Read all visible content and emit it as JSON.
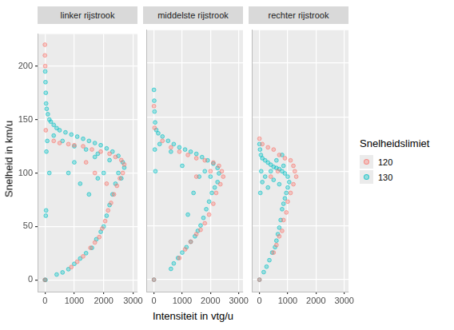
{
  "chart_data": {
    "type": "scatter",
    "x_label": "Intensiteit in vtg/u",
    "y_label": "Snelheid in km/u",
    "legend": "right",
    "legend_title": "Snelheidslimiet",
    "xlim": [
      -250,
      3150
    ],
    "xticks": [
      0,
      1000,
      2000,
      3000
    ],
    "ylim": [
      -11,
      230
    ],
    "yticks": [
      0,
      50,
      100,
      150,
      200
    ],
    "grid": true,
    "marker": "circle",
    "panels": [
      {
        "title": "linker rijstrook",
        "series": [
          {
            "name": "120",
            "color": "#F8766D",
            "x": [
              0,
              0,
              10,
              30,
              300,
              500,
              800,
              1000,
              1300,
              1600,
              1900,
              2200,
              2400,
              2600,
              2700,
              2650,
              2550,
              2450,
              2350,
              2250,
              2150,
              2050,
              1950,
              1850,
              1700,
              1550,
              1300,
              1100,
              900,
              2100,
              1700,
              1400,
              0
            ],
            "values": [
              220,
              210,
              200,
              140,
              130,
              128,
              127,
              126,
              125,
              122,
              120,
              118,
              115,
              112,
              108,
              100,
              95,
              88,
              80,
              72,
              65,
              55,
              48,
              40,
              35,
              30,
              22,
              17,
              12,
              90,
              100,
              110,
              0
            ]
          },
          {
            "name": "130",
            "color": "#00BFC4",
            "x": [
              0,
              20,
              10,
              20,
              30,
              40,
              60,
              100,
              150,
              200,
              300,
              400,
              500,
              700,
              900,
              1100,
              1300,
              1500,
              1700,
              1900,
              2100,
              2300,
              2500,
              2650,
              2700,
              50,
              80,
              300,
              600,
              1000,
              1400,
              1800,
              2200,
              2500,
              2400,
              2300,
              2200,
              2100,
              2000,
              1900,
              1750,
              1600,
              1400,
              1200,
              1000,
              800,
              600,
              400,
              2600,
              1700,
              40,
              30,
              150,
              800,
              1000,
              1200,
              1500,
              1800,
              2000
            ],
            "values": [
              0,
              0,
              195,
              185,
              175,
              165,
              160,
              155,
              150,
              148,
              145,
              142,
              140,
              138,
              136,
              134,
              132,
              130,
              128,
              126,
              123,
              120,
              116,
              110,
              105,
              120,
              130,
              135,
              130,
              125,
              122,
              118,
              112,
              100,
              90,
              80,
              70,
              60,
              50,
              45,
              38,
              30,
              25,
              20,
              15,
              10,
              7,
              5,
              95,
              115,
              65,
              60,
              100,
              100,
              110,
              90,
              80,
              95,
              100
            ]
          }
        ]
      },
      {
        "title": "middelste rijstrook",
        "series": [
          {
            "name": "120",
            "color": "#F8766D",
            "x": [
              0,
              20,
              300,
              600,
              900,
              1200,
              1500,
              1800,
              2100,
              2300,
              2400,
              2450,
              2350,
              2200,
              2100,
              1950,
              1800,
              1650,
              1500,
              1300,
              1100,
              900,
              0,
              1500,
              2000
            ],
            "values": [
              160,
              140,
              128,
              122,
              118,
              115,
              112,
              110,
              108,
              105,
              100,
              95,
              88,
              80,
              70,
              60,
              52,
              46,
              42,
              35,
              28,
              20,
              0,
              95,
              100
            ]
          },
          {
            "name": "130",
            "color": "#00BFC4",
            "x": [
              0,
              10,
              20,
              40,
              80,
              150,
              300,
              500,
              700,
              900,
              1100,
              1300,
              1500,
              1700,
              1900,
              2100,
              2250,
              2300,
              2250,
              2150,
              2050,
              1950,
              1850,
              1750,
              1650,
              1550,
              1450,
              1300,
              1150,
              1000,
              850,
              700,
              600,
              1200,
              1400,
              1600,
              1800,
              1000,
              600,
              0,
              30,
              50,
              200,
              2000
            ],
            "values": [
              175,
              165,
              155,
              145,
              138,
              135,
              132,
              128,
              125,
              122,
              120,
              118,
              116,
              113,
              110,
              107,
              103,
              98,
              90,
              85,
              80,
              72,
              65,
              57,
              50,
              45,
              40,
              35,
              30,
              25,
              20,
              15,
              10,
              60,
              80,
              95,
              100,
              105,
              118,
              0,
              120,
              100,
              125,
              95
            ]
          }
        ]
      },
      {
        "title": "rechter rijstrook",
        "series": [
          {
            "name": "120",
            "color": "#F8766D",
            "x": [
              0,
              100,
              300,
              500,
              700,
              900,
              1100,
              1200,
              1250,
              1300,
              1200,
              1100,
              1000,
              950,
              850,
              800,
              700,
              600,
              500,
              0,
              400,
              650
            ],
            "values": [
              130,
              125,
              122,
              120,
              115,
              112,
              110,
              105,
              100,
              95,
              88,
              80,
              72,
              62,
              55,
              45,
              40,
              32,
              25,
              0,
              95,
              100
            ]
          },
          {
            "name": "130",
            "color": "#00BFC4",
            "x": [
              0,
              20,
              50,
              100,
              200,
              300,
              400,
              500,
              600,
              700,
              800,
              900,
              1000,
              1050,
              1000,
              950,
              900,
              850,
              800,
              750,
              700,
              650,
              600,
              550,
              450,
              350,
              250,
              150,
              0,
              100,
              200,
              400,
              600,
              800,
              300,
              500,
              700,
              850,
              30,
              60
            ],
            "values": [
              125,
              120,
              115,
              112,
              110,
              108,
              106,
              104,
              103,
              102,
              100,
              98,
              95,
              90,
              85,
              80,
              75,
              70,
              65,
              55,
              48,
              42,
              36,
              30,
              25,
              18,
              12,
              7,
              0,
              90,
              95,
              100,
              110,
              115,
              85,
              92,
              88,
              105,
              80,
              100
            ]
          }
        ]
      }
    ]
  }
}
